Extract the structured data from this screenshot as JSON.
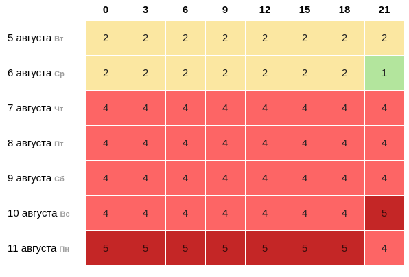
{
  "hours": [
    "0",
    "3",
    "6",
    "9",
    "12",
    "15",
    "18",
    "21"
  ],
  "rows": [
    {
      "date": "5 августа",
      "weekday": "Вт",
      "values": [
        "2",
        "2",
        "2",
        "2",
        "2",
        "2",
        "2",
        "2"
      ]
    },
    {
      "date": "6 августа",
      "weekday": "Ср",
      "values": [
        "2",
        "2",
        "2",
        "2",
        "2",
        "2",
        "2",
        "1"
      ]
    },
    {
      "date": "7 августа",
      "weekday": "Чт",
      "values": [
        "4",
        "4",
        "4",
        "4",
        "4",
        "4",
        "4",
        "4"
      ]
    },
    {
      "date": "8 августа",
      "weekday": "Пт",
      "values": [
        "4",
        "4",
        "4",
        "4",
        "4",
        "4",
        "4",
        "4"
      ]
    },
    {
      "date": "9 августа",
      "weekday": "Сб",
      "values": [
        "4",
        "4",
        "4",
        "4",
        "4",
        "4",
        "4",
        "4"
      ]
    },
    {
      "date": "10 августа",
      "weekday": "Вс",
      "values": [
        "4",
        "4",
        "4",
        "4",
        "4",
        "4",
        "4",
        "5"
      ]
    },
    {
      "date": "11 августа",
      "weekday": "Пн",
      "values": [
        "5",
        "5",
        "5",
        "5",
        "5",
        "5",
        "5",
        "4"
      ]
    }
  ],
  "level_colors": {
    "1": "#b3e59d",
    "2": "#fbe7a1",
    "4": "#fd6565",
    "5": "#c42626"
  }
}
